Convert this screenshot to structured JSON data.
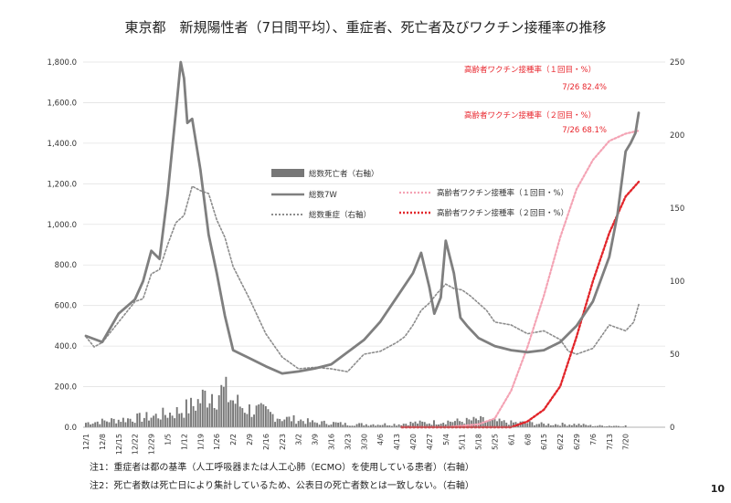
{
  "page_number": "10",
  "notes": [
    "注1：重症者は都の基準（人工呼吸器または人工心肺（ECMO）を使用している患者）（右軸）",
    "注2：死亡者数は死亡日により集計しているため、公表日の死亡者数とは一致しない。（右軸）"
  ],
  "colors": {
    "bars": "#777777",
    "cases_line": "#7f7f7f",
    "severe_line": "#8c8c8c",
    "vac1_line": "#f4a3b4",
    "vac2_line": "#e2262b",
    "annotation": "#e8252c"
  },
  "chart_data": {
    "type": "combo",
    "title": "東京都　新規陽性者（7日間平均）、重症者、死亡者及びワクチン接種率の推移",
    "left_axis": {
      "ylim": [
        0,
        1800
      ],
      "ticks": [
        "0.0",
        "200.0",
        "400.0",
        "600.0",
        "800.0",
        "1,000.0",
        "1,200.0",
        "1,400.0",
        "1,600.0",
        "1,800.0"
      ]
    },
    "right_axis": {
      "ylim": [
        0,
        250
      ],
      "ticks": [
        "0",
        "50",
        "100",
        "150",
        "200",
        "250"
      ]
    },
    "x_tick_labels": [
      "12/1",
      "12/8",
      "12/15",
      "12/22",
      "12/29",
      "1/5",
      "1/12",
      "1/19",
      "1/26",
      "2/2",
      "2/9",
      "2/16",
      "2/23",
      "3/2",
      "3/9",
      "3/16",
      "3/23",
      "3/30",
      "4/6",
      "4/13",
      "4/20",
      "4/27",
      "5/4",
      "5/11",
      "5/18",
      "5/25",
      "6/1",
      "6/8",
      "6/15",
      "6/22",
      "6/29",
      "7/6",
      "7/13",
      "7/20"
    ],
    "legend": [
      {
        "name": "総数死亡者（右軸）",
        "style": "bar"
      },
      {
        "name": "総数7W",
        "style": "solid"
      },
      {
        "name": "総数重症（右軸）",
        "style": "dotted"
      },
      {
        "name": "高齢者ワクチン接種率（１回目・%）",
        "style": "pink-dotted"
      },
      {
        "name": "高齢者ワクチン接種率（２回目・%）",
        "style": "red-dotted"
      }
    ],
    "annotations": [
      {
        "label": "高齢者ワクチン接種率（１回目・%）",
        "value": "7/26 82.4%"
      },
      {
        "label": "高齢者ワクチン接種率（２回目・%）",
        "value": "7/26 68.1%"
      }
    ],
    "series": [
      {
        "name": "総数7W",
        "axis": "left",
        "week_index": [
          0,
          1,
          2,
          3,
          3.5,
          4,
          4.5,
          5,
          5.5,
          5.8,
          6,
          6.2,
          6.5,
          7,
          7.5,
          8,
          8.5,
          9,
          9.5,
          10,
          11,
          12,
          13,
          14,
          15,
          16,
          17,
          18,
          19,
          20,
          20.5,
          21,
          21.3,
          21.7,
          22,
          22.5,
          22.9,
          23.3,
          24,
          25,
          26,
          27,
          28,
          29,
          30,
          31,
          32,
          32.5,
          33,
          33.3,
          33.6,
          33.8
        ],
        "values": [
          450,
          420,
          560,
          630,
          720,
          870,
          830,
          1150,
          1550,
          1800,
          1720,
          1500,
          1520,
          1270,
          950,
          760,
          550,
          380,
          360,
          340,
          300,
          265,
          275,
          290,
          310,
          370,
          430,
          520,
          640,
          760,
          860,
          690,
          560,
          640,
          920,
          760,
          540,
          500,
          440,
          400,
          380,
          370,
          380,
          420,
          500,
          620,
          840,
          1050,
          1360,
          1400,
          1450,
          1550
        ]
      },
      {
        "name": "総数重症（右軸）",
        "axis": "right",
        "week_index": [
          0,
          0.5,
          1,
          2,
          3,
          3.5,
          4,
          4.5,
          5,
          5.5,
          6,
          6.5,
          7,
          7.5,
          8,
          8.5,
          9,
          9.5,
          10,
          10.5,
          11,
          12,
          12.5,
          13,
          14,
          15,
          16,
          17,
          18,
          19,
          19.5,
          20,
          20.5,
          21,
          21.5,
          22,
          22.5,
          23,
          23.5,
          24,
          24.5,
          25,
          26,
          27,
          28,
          29,
          29.5,
          30,
          31,
          32,
          33,
          33.5,
          33.8
        ],
        "values": [
          62,
          55,
          58,
          72,
          86,
          88,
          105,
          108,
          125,
          140,
          145,
          165,
          162,
          160,
          142,
          130,
          110,
          99,
          88,
          76,
          64,
          48,
          44,
          40,
          41,
          40,
          38,
          50,
          52,
          58,
          62,
          70,
          80,
          85,
          92,
          98,
          95,
          94,
          90,
          85,
          80,
          72,
          70,
          64,
          66,
          60,
          52,
          50,
          54,
          70,
          66,
          72,
          84
        ]
      },
      {
        "name": "総数死亡者（右軸）",
        "axis": "right",
        "week_index": [
          0,
          1,
          2,
          3,
          4,
          5,
          5.5,
          6,
          6.5,
          7,
          7.5,
          8,
          8.5,
          9,
          9.5,
          10,
          11,
          12,
          13,
          14,
          15,
          16,
          17,
          18,
          19,
          20,
          21,
          22,
          23,
          24,
          25,
          26,
          27,
          28,
          29,
          30,
          31,
          32,
          33
        ],
        "values": [
          3,
          4,
          5,
          6,
          7,
          9,
          10,
          12,
          14,
          18,
          23,
          24,
          23,
          18,
          14,
          12,
          10,
          6,
          5,
          3,
          3,
          2,
          2,
          2,
          2,
          3,
          3,
          4,
          4,
          5,
          4,
          3,
          3,
          2,
          2,
          2,
          1,
          1,
          1
        ]
      },
      {
        "name": "高齢者ワクチン接種率（１回目・%）",
        "axis": "right",
        "week_index": [
          19.3,
          22,
          24,
          25,
          26,
          27,
          28,
          29,
          30,
          31,
          32,
          33,
          33.8
        ],
        "values": [
          0,
          0,
          2,
          6,
          25,
          55,
          90,
          130,
          163,
          183,
          196,
          201,
          203
        ]
      },
      {
        "name": "高齢者ワクチン接種率（２回目・%）",
        "axis": "right",
        "week_index": [
          19.3,
          26,
          27,
          28,
          29,
          30,
          31,
          32,
          33,
          33.8
        ],
        "values": [
          0,
          0,
          4,
          12,
          28,
          62,
          100,
          133,
          158,
          168
        ]
      }
    ]
  }
}
